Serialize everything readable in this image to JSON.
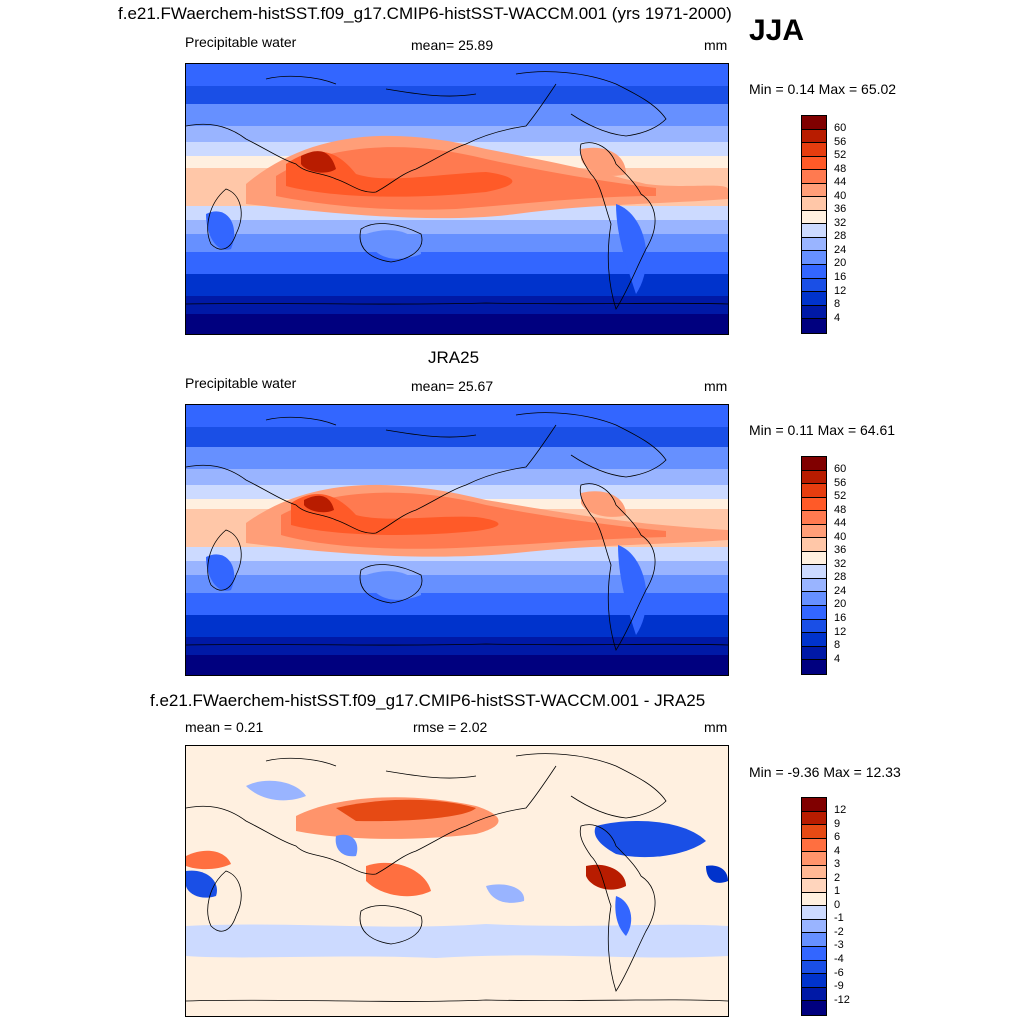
{
  "season": "JJA",
  "colors": {
    "abs_levels": [
      "#00007f",
      "#0019a6",
      "#0033cc",
      "#1a4fe6",
      "#3366ff",
      "#6690ff",
      "#99b4ff",
      "#ccdaff",
      "#fff0e0",
      "#ffc7a8",
      "#ff9e78",
      "#ff7a50",
      "#ff5a28",
      "#e63d0f",
      "#b81c00",
      "#800000"
    ],
    "diff_levels": [
      "#00007f",
      "#0019a6",
      "#0033cc",
      "#1a4fe6",
      "#3366ff",
      "#6690ff",
      "#99b4ff",
      "#ccdaff",
      "#fff0e0",
      "#ffd5bd",
      "#ffb894",
      "#ff946b",
      "#ff6f40",
      "#e64a14",
      "#b81c00",
      "#800000"
    ]
  },
  "panels": [
    {
      "title": "f.e21.FWaerchem-histSST.f09_g17.CMIP6-histSST-WACCM.001 (yrs 1971-2000)",
      "left_label": "Precipitable water",
      "center_label": "mean=  25.89",
      "units": "mm",
      "minmax": "Min =   0.14 Max =  65.02",
      "ticks": [
        "60",
        "56",
        "52",
        "48",
        "44",
        "40",
        "36",
        "32",
        "28",
        "24",
        "20",
        "16",
        "12",
        "8",
        "4"
      ]
    },
    {
      "title": "JRA25",
      "left_label": "Precipitable water",
      "center_label": "mean=  25.67",
      "units": "mm",
      "minmax": "Min =   0.11 Max =  64.61",
      "ticks": [
        "60",
        "56",
        "52",
        "48",
        "44",
        "40",
        "36",
        "32",
        "28",
        "24",
        "20",
        "16",
        "12",
        "8",
        "4"
      ]
    },
    {
      "title": "f.e21.FWaerchem-histSST.f09_g17.CMIP6-histSST-WACCM.001 - JRA25",
      "left_label": "mean =   0.21",
      "center_label": "rmse =   2.02",
      "units": "mm",
      "minmax": "Min =  -9.36 Max =  12.33",
      "ticks": [
        "12",
        "9",
        "6",
        "4",
        "3",
        "2",
        "1",
        "0",
        "-1",
        "-2",
        "-3",
        "-4",
        "-6",
        "-9",
        "-12"
      ]
    }
  ]
}
